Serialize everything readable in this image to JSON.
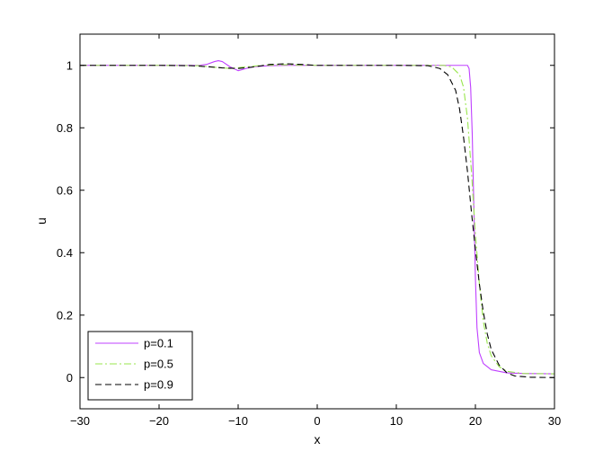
{
  "chart_data": {
    "type": "line",
    "title": "",
    "xlabel": "x",
    "ylabel": "u",
    "xlim": [
      -30,
      30
    ],
    "ylim": [
      -0.1,
      1.1
    ],
    "xticks": [
      -30,
      -20,
      -10,
      0,
      10,
      20,
      30
    ],
    "yticks": [
      0,
      0.2,
      0.4,
      0.6,
      0.8,
      1
    ],
    "xtick_labels": [
      "−30",
      "−20",
      "−10",
      "0",
      "10",
      "20",
      "30"
    ],
    "ytick_labels": [
      "0",
      "0.2",
      "0.4",
      "0.6",
      "0.8",
      "1"
    ],
    "grid": false,
    "legend_position": "bottom-left",
    "series": [
      {
        "name": "p=0.1",
        "color": "#bf40ff",
        "dash": "solid",
        "x": [
          -30,
          -20,
          -15,
          -14,
          -13,
          -12.5,
          -12,
          -11,
          -10,
          -9,
          -8,
          -6,
          -4,
          0,
          10,
          17,
          18.5,
          19,
          19.2,
          19.4,
          19.6,
          19.8,
          20,
          20.2,
          20.5,
          21,
          22,
          24,
          26,
          30
        ],
        "y": [
          1,
          1,
          1,
          1.003,
          1.012,
          1.015,
          1.012,
          0.995,
          0.983,
          0.99,
          0.996,
          0.999,
          1,
          1,
          1,
          1,
          1,
          1,
          0.99,
          0.93,
          0.78,
          0.55,
          0.32,
          0.16,
          0.08,
          0.045,
          0.025,
          0.015,
          0.013,
          0.012
        ]
      },
      {
        "name": "p=0.5",
        "color": "#99e64d",
        "dash": "dashdot",
        "x": [
          -30,
          -20,
          -15,
          -13,
          -11,
          -9,
          -7,
          -4,
          0,
          10,
          16,
          17,
          18,
          18.5,
          19,
          19.5,
          20,
          20.5,
          21,
          21.5,
          22,
          23,
          24,
          26,
          30
        ],
        "y": [
          1,
          1,
          0.999,
          0.994,
          0.99,
          0.995,
          1,
          1.002,
          1,
          1,
          1,
          0.995,
          0.97,
          0.93,
          0.83,
          0.66,
          0.46,
          0.3,
          0.18,
          0.11,
          0.07,
          0.035,
          0.02,
          0.013,
          0.012
        ]
      },
      {
        "name": "p=0.9",
        "color": "#000000",
        "dash": "dashed",
        "x": [
          -30,
          -20,
          -16,
          -14,
          -12,
          -10,
          -8,
          -6,
          -4,
          -2,
          0,
          10,
          14,
          15.5,
          16.5,
          17.5,
          18,
          18.5,
          19,
          19.5,
          20,
          20.5,
          21,
          21.5,
          22,
          23,
          24,
          25,
          27,
          30
        ],
        "y": [
          1,
          1,
          0.999,
          0.996,
          0.992,
          0.99,
          0.995,
          1.003,
          1.005,
          1.003,
          1,
          1,
          0.999,
          0.99,
          0.97,
          0.92,
          0.86,
          0.77,
          0.66,
          0.53,
          0.41,
          0.3,
          0.21,
          0.14,
          0.09,
          0.04,
          0.015,
          0.005,
          0.001,
          0
        ]
      }
    ]
  }
}
